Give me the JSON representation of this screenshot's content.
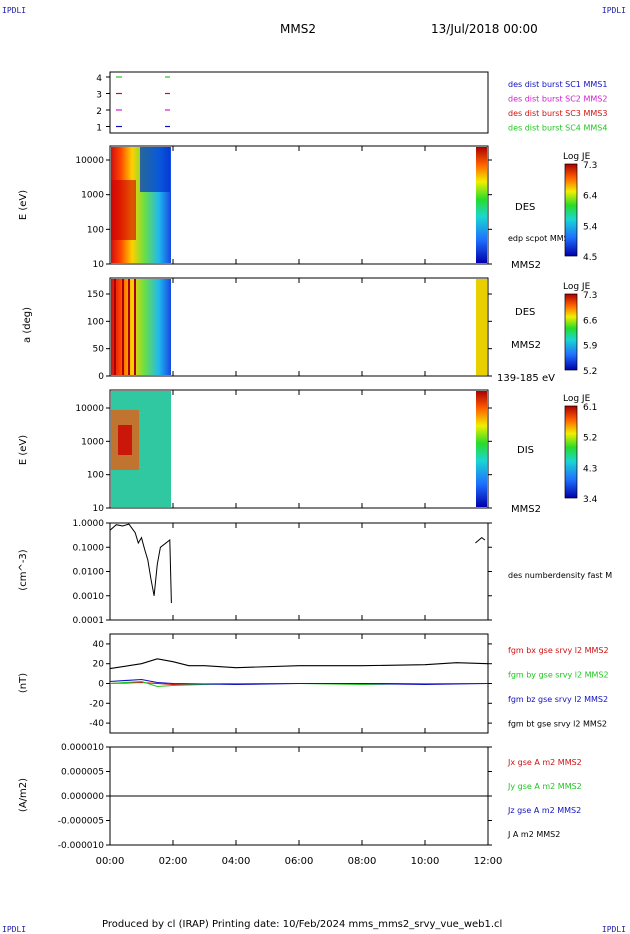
{
  "header": {
    "corner_tl": "IPDLI",
    "corner_tr": "IPDLI",
    "corner_bl": "IPDLI",
    "corner_br": "IPDLI",
    "spacecraft": "MMS2",
    "date": "13/Jul/2018 00:00"
  },
  "footer": {
    "text": "Produced by cl (IRAP)   Printing date: 10/Feb/2024   mms_mms2_srvy_vue_web1.cl"
  },
  "colors": {
    "green": "#22c522",
    "magenta": "#d020d0",
    "red": "#d01010",
    "blue": "#1010c0",
    "black": "#000000"
  },
  "chart_data": [
    {
      "type": "scatter",
      "panel": "availability",
      "yticks": [
        "4",
        "3",
        "2",
        "1"
      ],
      "legend": [
        {
          "label": "des dist burst SC1 MMS1",
          "color": "#1010c0"
        },
        {
          "label": "des dist burst SC2 MMS2",
          "color": "#d020d0"
        },
        {
          "label": "des dist burst SC3 MMS3",
          "color": "#d01010"
        },
        {
          "label": "des dist burst SC4 MMS4",
          "color": "#22c522"
        }
      ]
    },
    {
      "type": "heatmap",
      "panel": "des-energy",
      "ylabel": "E (eV)",
      "yticks": [
        "10000",
        "1000",
        "100",
        "10"
      ],
      "label": "DES",
      "extra_label": "edp scpot MMS2",
      "sc_label": "MMS2",
      "colorbar": {
        "title": "Log JE",
        "ticks": [
          "7.3",
          "6.4",
          "5.4",
          "4.5"
        ]
      }
    },
    {
      "type": "heatmap",
      "panel": "des-pitch",
      "ylabel": "a (deg)",
      "yticks": [
        "150",
        "100",
        "50",
        "0"
      ],
      "label": "DES",
      "sc_label": "MMS2",
      "energy_label": "139-185 eV",
      "colorbar": {
        "title": "Log JE",
        "ticks": [
          "7.3",
          "6.6",
          "5.9",
          "5.2"
        ]
      }
    },
    {
      "type": "heatmap",
      "panel": "dis-energy",
      "ylabel": "E (eV)",
      "yticks": [
        "10000",
        "1000",
        "100",
        "10"
      ],
      "label": "DIS",
      "sc_label": "MMS2",
      "colorbar": {
        "title": "Log JE",
        "ticks": [
          "6.1",
          "5.2",
          "4.3",
          "3.4"
        ]
      }
    },
    {
      "type": "line",
      "panel": "density",
      "ylabel": "(cm^-3)",
      "yticks": [
        "1.0000",
        "0.1000",
        "0.0100",
        "0.0010",
        "0.0001"
      ],
      "legend": [
        "des numberdensity fast M"
      ],
      "series": [
        {
          "name": "des numberdensity fast M",
          "x": [
            0.0,
            0.2,
            0.4,
            0.6,
            0.8,
            0.9,
            1.0,
            1.1,
            1.2,
            1.3,
            1.4,
            1.5,
            1.6,
            1.9,
            1.95,
            11.6,
            11.8,
            11.9
          ],
          "y": [
            0.5,
            0.85,
            0.75,
            0.9,
            0.4,
            0.15,
            0.25,
            0.08,
            0.03,
            0.005,
            0.001,
            0.02,
            0.1,
            0.2,
            0.0005,
            0.15,
            0.25,
            0.2
          ]
        }
      ]
    },
    {
      "type": "line",
      "panel": "magnetic-field",
      "ylabel": "(nT)",
      "yticks": [
        "40",
        "20",
        "0",
        "-20",
        "-40"
      ],
      "ylim": [
        -50,
        50
      ],
      "legend": [
        {
          "label": "fgm bx gse srvy l2 MMS2",
          "color": "#d01010"
        },
        {
          "label": "fgm by gse srvy l2 MMS2",
          "color": "#22c522"
        },
        {
          "label": "fgm bz gse srvy l2 MMS2",
          "color": "#1010c0"
        },
        {
          "label": "fgm bt gse srvy l2 MMS2",
          "color": "#000000"
        }
      ],
      "series": [
        {
          "name": "fgm bt gse srvy l2 MMS2",
          "x": [
            0,
            1,
            1.5,
            2,
            2.5,
            3,
            4,
            6,
            8,
            10,
            11,
            12
          ],
          "y": [
            15,
            20,
            25,
            22,
            18,
            18,
            16,
            18,
            18,
            19,
            21,
            20
          ]
        },
        {
          "name": "fgm bx gse srvy l2 MMS2",
          "x": [
            0,
            1,
            2,
            4,
            6,
            8,
            10,
            12
          ],
          "y": [
            0,
            1,
            -1,
            0,
            0,
            0,
            0,
            0
          ]
        },
        {
          "name": "fgm by gse srvy l2 MMS2",
          "x": [
            0,
            1,
            1.5,
            2,
            4,
            6,
            8,
            10,
            12
          ],
          "y": [
            0,
            2,
            -3,
            -2,
            0,
            0,
            -1,
            0,
            0
          ]
        },
        {
          "name": "fgm bz gse srvy l2 MMS2",
          "x": [
            0,
            1,
            1.5,
            2,
            4,
            6,
            8,
            10,
            12
          ],
          "y": [
            2,
            4,
            1,
            0,
            -1,
            0,
            0,
            -1,
            0
          ]
        }
      ]
    },
    {
      "type": "line",
      "panel": "current",
      "ylabel": "(A/m2)",
      "yticks": [
        "0.000010",
        "0.000005",
        "0.000000",
        "-0.000005",
        "-0.000010"
      ],
      "ylim": [
        -1e-05,
        1e-05
      ],
      "legend": [
        {
          "label": "Jx gse A m2 MMS2",
          "color": "#d01010"
        },
        {
          "label": "Jy gse A m2 MMS2",
          "color": "#22c522"
        },
        {
          "label": "Jz gse A m2 MMS2",
          "color": "#1010c0"
        },
        {
          "label": "J A m2 MMS2",
          "color": "#000000"
        }
      ],
      "series": [
        {
          "name": "J A m2 MMS2",
          "x": [
            0,
            12
          ],
          "y": [
            0,
            0
          ]
        }
      ]
    }
  ],
  "xaxis": {
    "ticks": [
      "00:00",
      "02:00",
      "04:00",
      "06:00",
      "08:00",
      "10:00",
      "12:00"
    ],
    "range_hours": [
      0,
      12
    ]
  }
}
